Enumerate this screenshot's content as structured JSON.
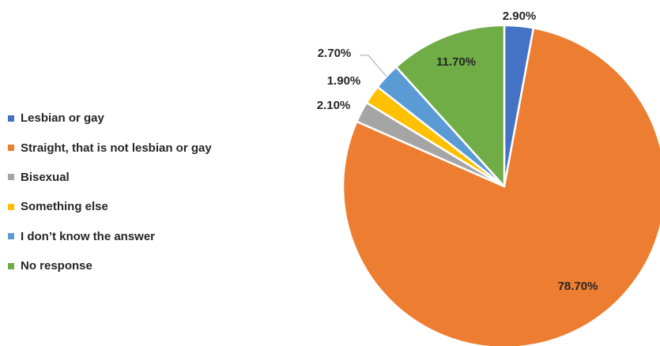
{
  "chart_data": {
    "type": "pie",
    "title": "",
    "legend_position": "left",
    "slices": [
      {
        "label": "Lesbian or gay",
        "value": 2.9,
        "display": "2.90%",
        "color": "#4472C4"
      },
      {
        "label": "Straight, that is not lesbian or gay",
        "value": 78.7,
        "display": "78.70%",
        "color": "#ED7D31"
      },
      {
        "label": "Bisexual",
        "value": 2.1,
        "display": "2.10%",
        "color": "#A5A5A5"
      },
      {
        "label": "Something else",
        "value": 1.9,
        "display": "1.90%",
        "color": "#FFC000"
      },
      {
        "label": "I don’t know the answer",
        "value": 2.7,
        "display": "2.70%",
        "color": "#5B9BD5"
      },
      {
        "label": "No response",
        "value": 11.7,
        "display": "11.70%",
        "color": "#70AD47"
      }
    ]
  }
}
